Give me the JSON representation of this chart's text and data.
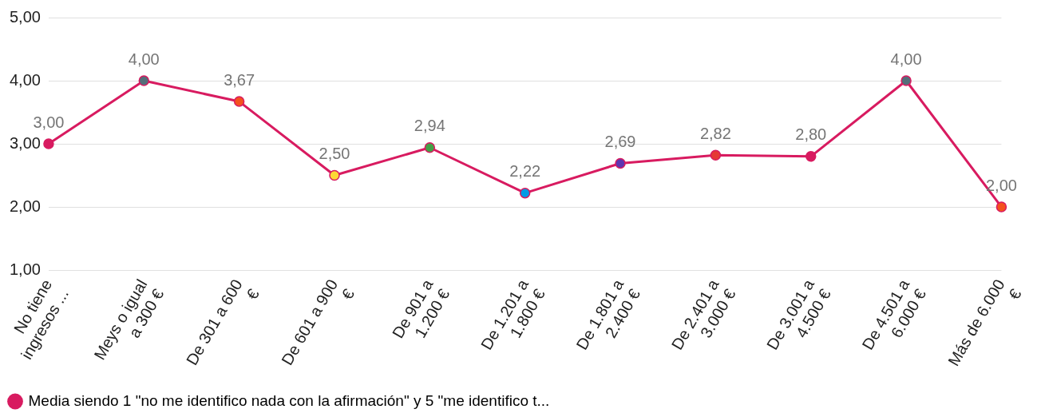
{
  "chart_data": {
    "type": "line",
    "categories": [
      "No tiene\ningresos ...",
      "Meys o igual\na 300 €",
      "De 301 a 600\n€",
      "De 601 a 900\n€",
      "De 901 a\n1.200 €",
      "De 1.201 a\n1.800 €",
      "De 1.801 a\n2.400 €",
      "De 2.401 a\n3.000 €",
      "De 3.001 a\n4.500 €",
      "De 4.501 a\n6.000 €",
      "Más de 6.000\n€"
    ],
    "series": [
      {
        "name": "Media siendo 1 \"no me identifico nada con la afirmación\" y 5 \"me identifico t...",
        "color": "#d81b60",
        "colors": [
          "#d81b60",
          "#546e7a",
          "#f4511e",
          "#fdd835",
          "#43a047",
          "#039be5",
          "#5e35b1",
          "#e53935",
          "#d81b60",
          "#546e7a",
          "#f4511e"
        ],
        "values": [
          3.0,
          4.0,
          3.67,
          2.5,
          2.94,
          2.22,
          2.69,
          2.82,
          2.8,
          4.0,
          2.0
        ],
        "value_labels": [
          "3,00",
          "4,00",
          "3,67",
          "2,50",
          "2,94",
          "2,22",
          "2,69",
          "2,82",
          "2,80",
          "4,00",
          "2,00"
        ]
      }
    ],
    "ylim": [
      1,
      5
    ],
    "yticks": [
      {
        "value": 1,
        "label": "1,00"
      },
      {
        "value": 2,
        "label": "2,00"
      },
      {
        "value": 3,
        "label": "3,00"
      },
      {
        "value": 4,
        "label": "4,00"
      },
      {
        "value": 5,
        "label": "5,00"
      }
    ],
    "grid": "y",
    "legend": "bottom left",
    "marker": "circle",
    "line_style": "solid"
  }
}
